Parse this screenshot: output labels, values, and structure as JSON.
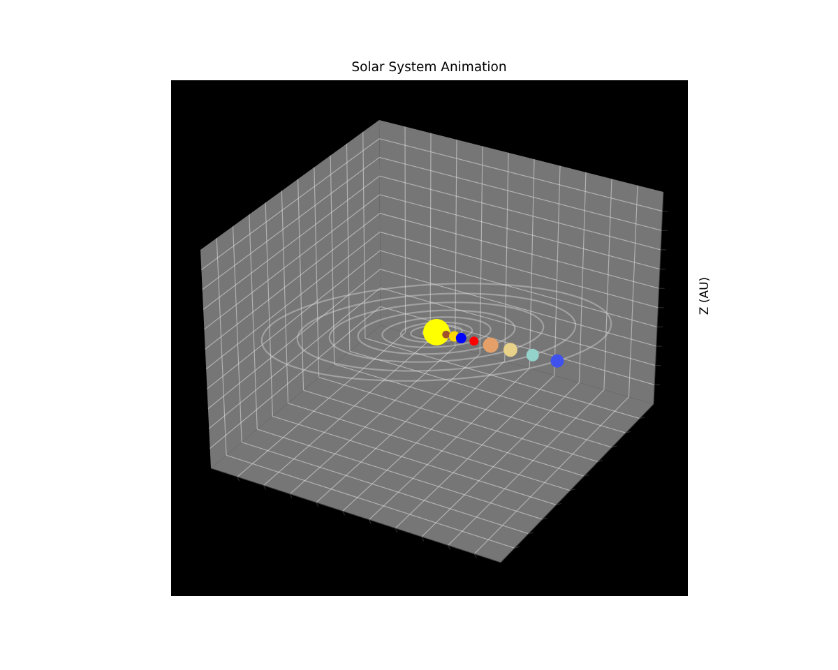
{
  "chart_data": {
    "type": "scatter3d",
    "title": "Solar System Animation",
    "xlabel": "",
    "ylabel": "",
    "zlabel": "Z (AU)",
    "background": "#000000",
    "pane_color": "#767676",
    "grid": true,
    "orbits": [
      {
        "radius": 0.39
      },
      {
        "radius": 0.72
      },
      {
        "radius": 1.0
      },
      {
        "radius": 1.52
      },
      {
        "radius": 2.2
      },
      {
        "radius": 3.0
      },
      {
        "radius": 3.9
      },
      {
        "radius": 4.9
      }
    ],
    "bodies": [
      {
        "color": "#ffff00",
        "x": 0.0,
        "size": 38
      },
      {
        "color": "#a0522d",
        "x": 0.39,
        "size": 11
      },
      {
        "color": "#ffd700",
        "x": 0.72,
        "size": 15
      },
      {
        "color": "#0000ff",
        "x": 1.0,
        "size": 15
      },
      {
        "color": "#ff0000",
        "x": 1.52,
        "size": 13
      },
      {
        "color": "#e5a06a",
        "x": 2.2,
        "size": 22
      },
      {
        "color": "#e8d28a",
        "x": 3.0,
        "size": 20
      },
      {
        "color": "#94d2cc",
        "x": 3.9,
        "size": 18
      },
      {
        "color": "#4052ee",
        "x": 4.9,
        "size": 19
      }
    ]
  }
}
